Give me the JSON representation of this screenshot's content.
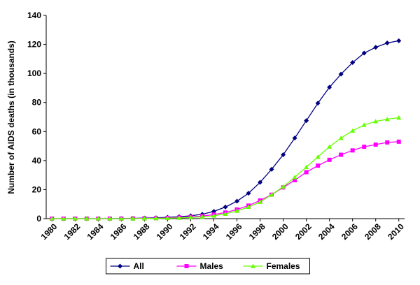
{
  "chart_data": {
    "type": "line",
    "y_label": "Number of AIDS deaths (in thousands)",
    "x": [
      1980,
      1981,
      1982,
      1983,
      1984,
      1985,
      1986,
      1987,
      1988,
      1989,
      1990,
      1991,
      1992,
      1993,
      1994,
      1995,
      1996,
      1997,
      1998,
      1999,
      2000,
      2001,
      2002,
      2003,
      2004,
      2005,
      2006,
      2007,
      2008,
      2009,
      2010
    ],
    "xlim": [
      1979.5,
      2010.5
    ],
    "xticks": [
      1980,
      1982,
      1984,
      1986,
      1988,
      1990,
      1992,
      1994,
      1996,
      1998,
      2000,
      2002,
      2004,
      2006,
      2008,
      2010
    ],
    "ylim": [
      0,
      140
    ],
    "yticks": [
      0,
      20,
      40,
      60,
      80,
      100,
      120,
      140
    ],
    "legend": "bottom",
    "series": [
      {
        "name": "All",
        "color": "#000080",
        "marker": "diamond",
        "values": [
          0,
          0,
          0,
          0,
          0,
          0,
          0.1,
          0.2,
          0.4,
          0.6,
          0.9,
          1.3,
          2,
          3,
          5,
          8,
          12,
          17.5,
          25,
          34,
          44,
          55.5,
          67.5,
          79.5,
          90.5,
          99.5,
          107.5,
          114,
          118,
          121,
          122.5
        ]
      },
      {
        "name": "Males",
        "color": "#ff00ff",
        "marker": "square",
        "values": [
          0,
          0,
          0,
          0,
          0,
          0,
          0,
          0.1,
          0.2,
          0.3,
          0.5,
          0.8,
          1.2,
          1.8,
          2.8,
          4.2,
          6.3,
          9,
          12.5,
          16.5,
          21.5,
          26.5,
          32,
          36.5,
          40.5,
          44,
          47,
          49.5,
          51,
          52.5,
          53
        ]
      },
      {
        "name": "Females",
        "color": "#66ff00",
        "marker": "triangle",
        "values": [
          0,
          0,
          0,
          0,
          0,
          0,
          0,
          0,
          0.1,
          0.2,
          0.3,
          0.5,
          0.8,
          1.2,
          2,
          3.3,
          5.3,
          8,
          11.5,
          16.5,
          22,
          28.5,
          35.5,
          42.5,
          49.5,
          55.5,
          60.5,
          64.5,
          67,
          68.5,
          69.5
        ]
      }
    ]
  }
}
